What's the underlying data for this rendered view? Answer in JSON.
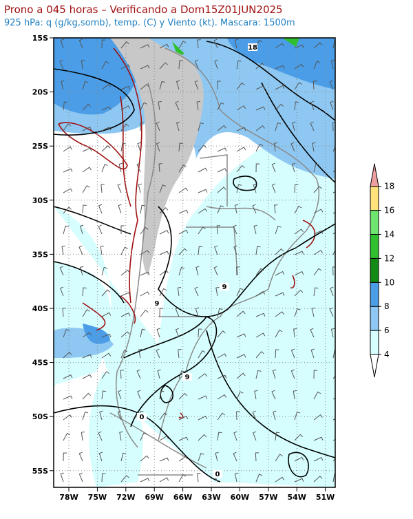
{
  "header": {
    "title": "Prono a 045 horas – Verificando a Dom15Z01JUN2025",
    "subtitle": "925 hPa: q (g/kg,somb), temp. (C) y Viento (kt). Mascara: 1500m"
  },
  "map": {
    "lat_labels": [
      "15S",
      "20S",
      "25S",
      "30S",
      "35S",
      "40S",
      "45S",
      "50S",
      "55S"
    ],
    "lon_labels": [
      "78W",
      "75W",
      "72W",
      "69W",
      "66W",
      "63W",
      "60W",
      "57W",
      "54W",
      "51W"
    ],
    "contour_labels": [
      "18",
      "9",
      "9",
      "9",
      "0",
      "0"
    ]
  },
  "colorbar": {
    "levels": [
      4,
      6,
      8,
      10,
      12,
      14,
      16,
      18
    ],
    "colors": [
      "#ffffff",
      "#d6fefe",
      "#8ec8f2",
      "#4a9de6",
      "#138a13",
      "#2fbf2f",
      "#6fe56f",
      "#ffe27a",
      "#eda0a0"
    ]
  }
}
